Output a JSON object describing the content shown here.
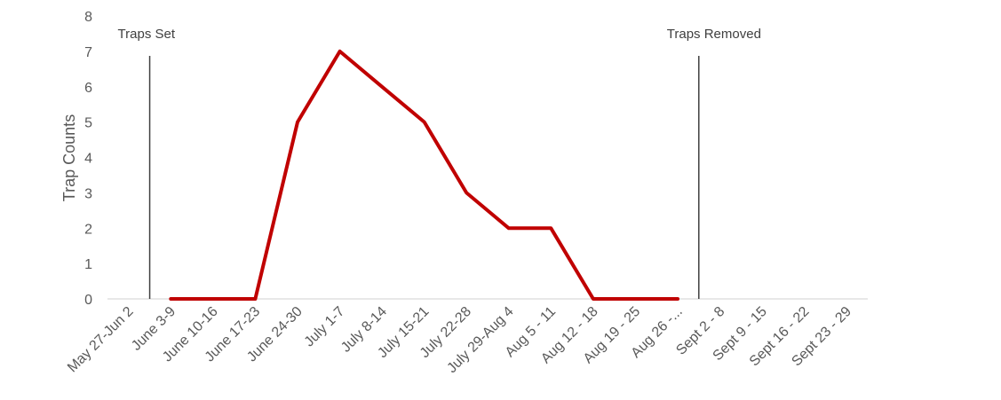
{
  "chart_data": {
    "type": "line",
    "categories": [
      "May 27-Jun 2",
      "June 3-9",
      "June 10-16",
      "June 17-23",
      "June 24-30",
      "July 1-7",
      "July 8-14",
      "July 15-21",
      "July 22-28",
      "July 29-Aug 4",
      "Aug 5 - 11",
      "Aug 12 - 18",
      "Aug 19 - 25",
      "Aug 26 -...",
      "Sept 2 - 8",
      "Sept 9 - 15",
      "Sept 16 - 22",
      "Sept 23 - 29"
    ],
    "series": [
      {
        "values": [
          null,
          0,
          0,
          0,
          5,
          7,
          6,
          5,
          3,
          2,
          2,
          0,
          0,
          0,
          null,
          null,
          null,
          null
        ],
        "color": "#c00000"
      }
    ],
    "ylabel": "Trap Counts",
    "xlabel": "",
    "ylim": [
      0,
      8
    ],
    "yticks": [
      0,
      1,
      2,
      3,
      4,
      5,
      6,
      7,
      8
    ],
    "grid": false,
    "annotations": [
      {
        "text": "Traps Set",
        "category_index": 0
      },
      {
        "text": "Traps Removed",
        "category_index": 13
      }
    ]
  }
}
